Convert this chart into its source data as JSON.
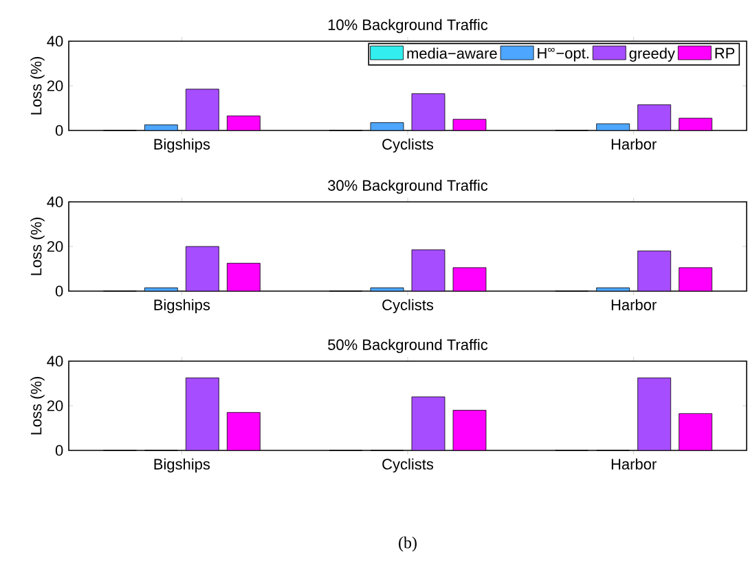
{
  "chart_data": [
    {
      "type": "bar",
      "title": "10% Background Traffic",
      "ylabel": "Loss (%)",
      "categories": [
        "Bigships",
        "Cyclists",
        "Harbor"
      ],
      "ylim": [
        0,
        40
      ],
      "yticks": [
        0,
        20,
        40
      ],
      "legend": "top right",
      "series": [
        {
          "name": "media−aware",
          "color": "#33eeee",
          "values": [
            0,
            0,
            0
          ]
        },
        {
          "name": "H$^{∞}$−opt.",
          "color": "#4da6ff",
          "values": [
            2.5,
            3.5,
            3
          ]
        },
        {
          "name": "greedy",
          "color": "#a64dff",
          "values": [
            18.5,
            16.5,
            11.5
          ]
        },
        {
          "name": "RP",
          "color": "#ff00ff",
          "values": [
            6.5,
            5,
            5.5
          ]
        }
      ]
    },
    {
      "type": "bar",
      "title": "30% Background Traffic",
      "ylabel": "Loss (%)",
      "categories": [
        "Bigships",
        "Cyclists",
        "Harbor"
      ],
      "ylim": [
        0,
        40
      ],
      "yticks": [
        0,
        20,
        40
      ],
      "series": [
        {
          "color": "#33eeee",
          "values": [
            0,
            0,
            0
          ]
        },
        {
          "color": "#4da6ff",
          "values": [
            1.5,
            1.5,
            1.5
          ]
        },
        {
          "color": "#a64dff",
          "values": [
            20,
            18.5,
            18
          ]
        },
        {
          "color": "#ff00ff",
          "values": [
            12.5,
            10.5,
            10.5
          ]
        }
      ]
    },
    {
      "type": "bar",
      "title": "50% Background Traffic",
      "ylabel": "Loss (%)",
      "categories": [
        "Bigships",
        "Cyclists",
        "Harbor"
      ],
      "ylim": [
        0,
        40
      ],
      "yticks": [
        0,
        20,
        40
      ],
      "annotations": [
        "(b)"
      ],
      "series": [
        {
          "color": "#33eeee",
          "values": [
            0,
            0,
            0
          ]
        },
        {
          "color": "#4da6ff",
          "values": [
            0,
            0,
            0
          ]
        },
        {
          "color": "#a64dff",
          "values": [
            32.5,
            24,
            32.5
          ]
        },
        {
          "color": "#ff00ff",
          "values": [
            17,
            18,
            16.5
          ]
        }
      ]
    }
  ]
}
